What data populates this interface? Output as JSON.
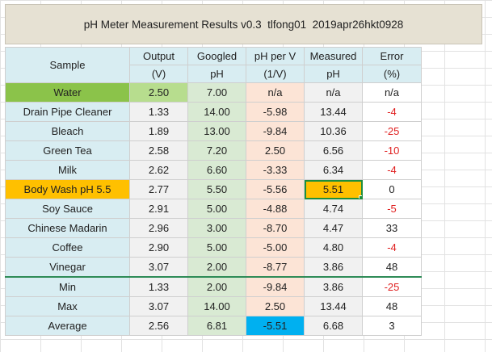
{
  "title": "pH Meter Measurement Results v0.3  tlfong01  2019apr26hkt0928",
  "headers": {
    "sample": "Sample",
    "output": [
      "Output",
      "(V)"
    ],
    "googled": [
      "Googled",
      "pH"
    ],
    "ph_per_v": [
      "pH per V",
      "(1/V)"
    ],
    "measured": [
      "Measured",
      "pH"
    ],
    "error": [
      "Error",
      "(%)"
    ]
  },
  "rows": [
    {
      "sample": "Water",
      "output": "2.50",
      "googled": "7.00",
      "ph_per_v": "n/a",
      "measured": "n/a",
      "error": "n/a",
      "error_red": false
    },
    {
      "sample": "Drain Pipe Cleaner",
      "output": "1.33",
      "googled": "14.00",
      "ph_per_v": "-5.98",
      "measured": "13.44",
      "error": "-4",
      "error_red": true
    },
    {
      "sample": "Bleach",
      "output": "1.89",
      "googled": "13.00",
      "ph_per_v": "-9.84",
      "measured": "10.36",
      "error": "-25",
      "error_red": true
    },
    {
      "sample": "Green Tea",
      "output": "2.58",
      "googled": "7.20",
      "ph_per_v": "2.50",
      "measured": "6.56",
      "error": "-10",
      "error_red": true
    },
    {
      "sample": "Milk",
      "output": "2.62",
      "googled": "6.60",
      "ph_per_v": "-3.33",
      "measured": "6.34",
      "error": "-4",
      "error_red": true
    },
    {
      "sample": "Body Wash pH 5.5",
      "output": "2.77",
      "googled": "5.50",
      "ph_per_v": "-5.56",
      "measured": "5.51",
      "error": "0",
      "error_red": false
    },
    {
      "sample": "Soy Sauce",
      "output": "2.91",
      "googled": "5.00",
      "ph_per_v": "-4.88",
      "measured": "4.74",
      "error": "-5",
      "error_red": true
    },
    {
      "sample": "Chinese Madarin",
      "output": "2.96",
      "googled": "3.00",
      "ph_per_v": "-8.70",
      "measured": "4.47",
      "error": "33",
      "error_red": false
    },
    {
      "sample": "Coffee",
      "output": "2.90",
      "googled": "5.00",
      "ph_per_v": "-5.00",
      "measured": "4.80",
      "error": "-4",
      "error_red": true
    },
    {
      "sample": "Vinegar",
      "output": "3.07",
      "googled": "2.00",
      "ph_per_v": "-8.77",
      "measured": "3.86",
      "error": "48",
      "error_red": false
    }
  ],
  "summary": [
    {
      "sample": "Min",
      "output": "1.33",
      "googled": "2.00",
      "ph_per_v": "-9.84",
      "measured": "3.86",
      "error": "-25",
      "error_red": true
    },
    {
      "sample": "Max",
      "output": "3.07",
      "googled": "14.00",
      "ph_per_v": "2.50",
      "measured": "13.44",
      "error": "48",
      "error_red": false
    },
    {
      "sample": "Average",
      "output": "2.56",
      "googled": "6.81",
      "ph_per_v": "-5.51",
      "measured": "6.68",
      "error": "3",
      "error_red": false
    }
  ],
  "colors": {
    "header_bg": "#d8edf2",
    "water_highlight": "#8bc34a",
    "body_wash_highlight": "#ffc000",
    "selection_border": "#1e8e3e",
    "average_ph_per_v": "#00b0f0",
    "negative_error": "#e02020"
  }
}
